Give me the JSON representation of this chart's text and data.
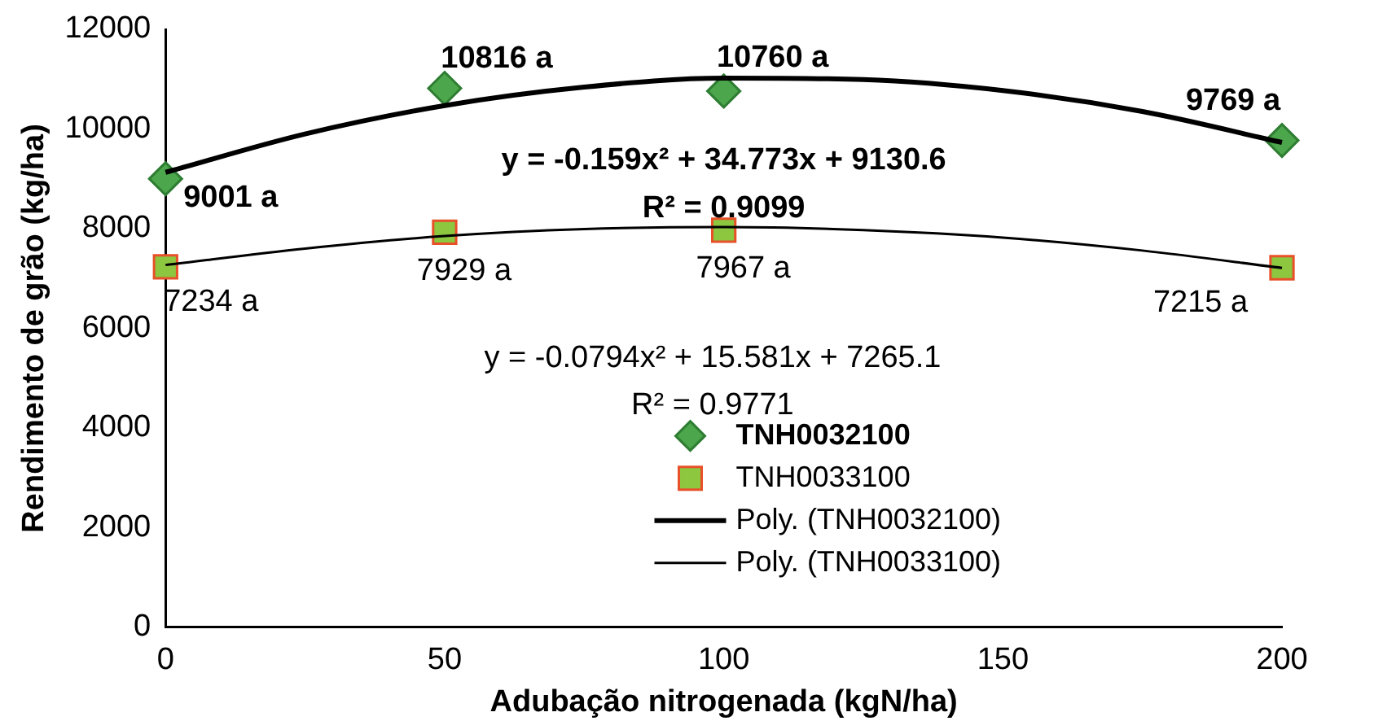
{
  "chart_data": {
    "type": "scatter",
    "xlabel": "Adubação nitrogenada (kgN/ha)",
    "ylabel": "Rendimento de grão (kg/ha)",
    "x": [
      0,
      50,
      100,
      200
    ],
    "series": [
      {
        "name": "TNH0032100",
        "marker": "diamond",
        "color": "#4ca64c",
        "values": [
          9001,
          10816,
          10760,
          9769
        ],
        "value_labels": [
          "9001 a",
          "10816 a",
          "10760 a",
          "9769 a"
        ]
      },
      {
        "name": "TNH0033100",
        "marker": "square",
        "color": "#8dc63f",
        "values": [
          7234,
          7929,
          7967,
          7215
        ],
        "value_labels": [
          "7234 a",
          "7929 a",
          "7967 a",
          "7215 a"
        ]
      },
      {
        "name": "Poly. (TNH0032100)",
        "type": "line",
        "marker": "none",
        "color": "#000000",
        "x": [
          0,
          25,
          50,
          75,
          100,
          125,
          150,
          175,
          200
        ],
        "values": [
          9130,
          9900,
          10470,
          10840,
          11020,
          10990,
          10770,
          10350,
          9730
        ]
      },
      {
        "name": "Poly. (TNH0033100)",
        "type": "line",
        "marker": "none",
        "color": "#000000",
        "x": [
          0,
          25,
          50,
          75,
          100,
          125,
          150,
          175,
          200
        ],
        "values": [
          7270,
          7600,
          7850,
          7990,
          8030,
          7970,
          7820,
          7560,
          7210
        ]
      }
    ],
    "annotations": [
      "y = -0.159x² + 34.773x + 9130.6",
      "R² = 0.9099",
      "y = -0.0794x² + 15.581x + 7265.1",
      "R² = 0.9771"
    ],
    "xlim": [
      0,
      200
    ],
    "xticks": [
      0,
      50,
      100,
      150,
      200
    ],
    "ylim": [
      0,
      12000
    ],
    "yticks": [
      0,
      2000,
      4000,
      6000,
      8000,
      10000,
      12000
    ],
    "legend": "bottom"
  }
}
